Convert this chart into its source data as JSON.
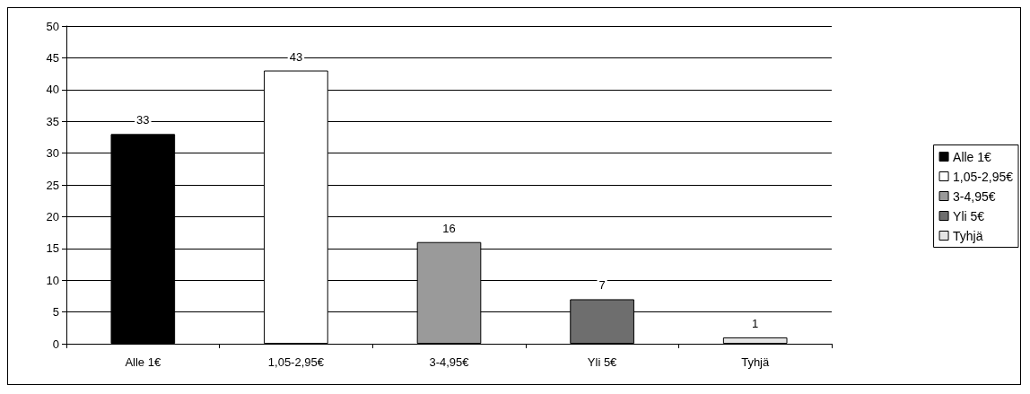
{
  "chart_data": {
    "type": "bar",
    "stacked": true,
    "categories": [
      "Alle 1€",
      "1,05-2,95€",
      "3-4,95€",
      "Yli 5€",
      "Tyhjä"
    ],
    "series": [
      {
        "name": "Alle 1€",
        "color": "#000000",
        "values": [
          33,
          null,
          null,
          null,
          null
        ]
      },
      {
        "name": "1,05-2,95€",
        "color": "#ffffff",
        "values": [
          null,
          43,
          null,
          null,
          null
        ]
      },
      {
        "name": "3-4,95€",
        "color": "#9a9a9a",
        "values": [
          null,
          null,
          16,
          null,
          null
        ]
      },
      {
        "name": "Yli 5€",
        "color": "#6e6e6e",
        "values": [
          null,
          null,
          null,
          7,
          null
        ]
      },
      {
        "name": "Tyhjä",
        "color": "#e4e4e4",
        "values": [
          null,
          null,
          null,
          null,
          1
        ]
      }
    ],
    "ylim": [
      0,
      50
    ],
    "yticks": [
      0,
      5,
      10,
      15,
      20,
      25,
      30,
      35,
      40,
      45,
      50
    ],
    "grid": "y",
    "legend": "right",
    "data_labels": true
  }
}
